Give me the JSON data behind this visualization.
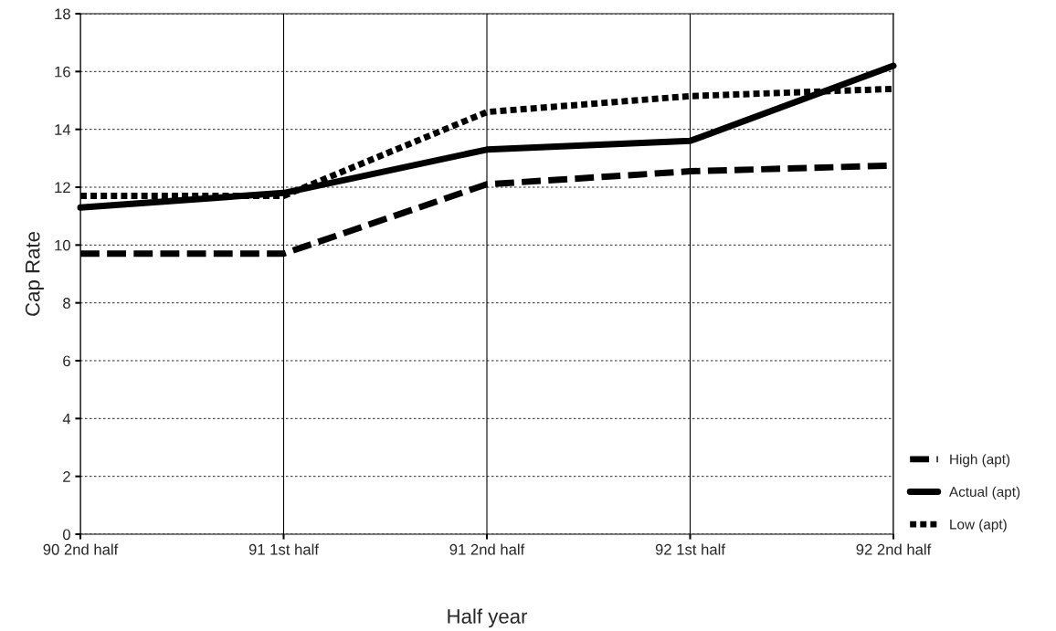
{
  "chart_data": {
    "type": "line",
    "xlabel": "Half year",
    "ylabel": "Cap Rate",
    "categories": [
      "90 2nd half",
      "91 1st half",
      "91 2nd half",
      "92 1st half",
      "92 2nd half"
    ],
    "series": [
      {
        "name": "High (apt)",
        "color": "#000000",
        "line_style": "dashed",
        "values": [
          9.7,
          9.7,
          12.1,
          12.55,
          12.75
        ]
      },
      {
        "name": "Actual (apt)",
        "color": "#000000",
        "line_style": "solid",
        "values": [
          11.3,
          11.8,
          13.3,
          13.6,
          16.2
        ]
      },
      {
        "name": "Low (apt)",
        "color": "#000000",
        "line_style": "dotted",
        "values": [
          11.7,
          11.7,
          14.6,
          15.15,
          15.4
        ]
      }
    ],
    "ylim": [
      0,
      18
    ],
    "yticks": [
      0,
      2,
      4,
      6,
      8,
      10,
      12,
      14,
      16,
      18
    ],
    "grid": true,
    "legend": "right",
    "marker": "none"
  }
}
